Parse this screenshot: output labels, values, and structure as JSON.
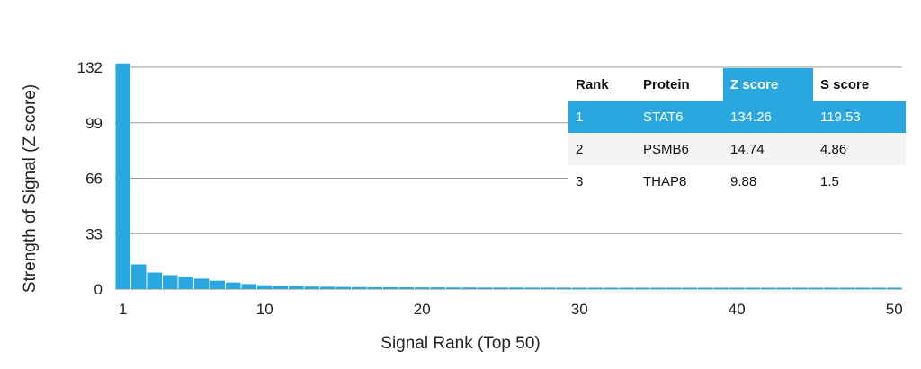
{
  "chart_data": {
    "type": "bar",
    "title": "",
    "xlabel": "Signal Rank (Top 50)",
    "ylabel": "Strength of Signal (Z score)",
    "ylim": [
      0,
      132
    ],
    "yticks": [
      0,
      33,
      66,
      99,
      132
    ],
    "xticks": [
      1,
      10,
      20,
      30,
      40,
      50
    ],
    "grid": true,
    "bar_color": "#2aa7df",
    "x": [
      1,
      2,
      3,
      4,
      5,
      6,
      7,
      8,
      9,
      10,
      11,
      12,
      13,
      14,
      15,
      16,
      17,
      18,
      19,
      20,
      21,
      22,
      23,
      24,
      25,
      26,
      27,
      28,
      29,
      30,
      31,
      32,
      33,
      34,
      35,
      36,
      37,
      38,
      39,
      40,
      41,
      42,
      43,
      44,
      45,
      46,
      47,
      48,
      49,
      50
    ],
    "values": [
      134.26,
      14.74,
      9.88,
      8.3,
      7.4,
      6.2,
      5.0,
      3.9,
      3.0,
      2.3,
      1.9,
      1.7,
      1.5,
      1.4,
      1.3,
      1.2,
      1.15,
      1.1,
      1.05,
      1.0,
      1.0,
      0.95,
      0.95,
      0.9,
      0.9,
      0.9,
      0.85,
      0.85,
      0.85,
      0.8,
      0.8,
      0.8,
      0.8,
      0.75,
      0.75,
      0.75,
      0.75,
      0.7,
      0.7,
      0.7,
      0.7,
      0.7,
      0.65,
      0.65,
      0.65,
      0.65,
      0.65,
      0.6,
      0.6,
      0.6
    ]
  },
  "table": {
    "headers": [
      "Rank",
      "Protein",
      "Z score",
      "S score"
    ],
    "rows": [
      [
        "1",
        "STAT6",
        "134.26",
        "119.53"
      ],
      [
        "2",
        "PSMB6",
        "14.74",
        "4.86"
      ],
      [
        "3",
        "THAP8",
        "9.88",
        "1.5"
      ]
    ]
  }
}
